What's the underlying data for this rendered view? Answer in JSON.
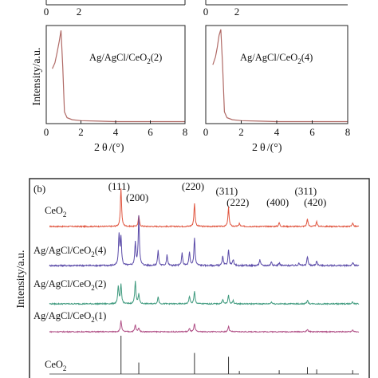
{
  "chart_data": [
    {
      "panel": "top-left-upper",
      "type": "line",
      "x_tick_labels": [
        "0",
        "2"
      ],
      "series": [
        {
          "x": [],
          "y": []
        }
      ]
    },
    {
      "panel": "top-right-upper",
      "type": "line",
      "x_tick_labels": [
        "0",
        "2"
      ],
      "series": [
        {
          "x": [],
          "y": []
        }
      ]
    },
    {
      "panel": "top-left",
      "type": "line",
      "label_text": "Ag/AgCl/CeO",
      "label_sub": "2",
      "label_suffix": "(2)",
      "xlabel_text": "2",
      "xlabel_theta": "θ",
      "xlabel_unit": "/(°)",
      "ylabel": "Intensity/a.u.",
      "xlim": [
        0,
        8
      ],
      "ylim": [
        0,
        1
      ],
      "x_tick_labels": [
        "0",
        "2",
        "4",
        "6",
        "8"
      ],
      "series": [
        {
          "color": "#b06a66",
          "x": [
            0.35,
            0.5,
            0.62,
            0.75,
            0.85,
            0.95,
            1.05,
            1.2,
            1.5,
            2,
            3,
            4,
            5,
            6,
            7,
            8
          ],
          "y": [
            0.56,
            0.62,
            0.72,
            0.84,
            0.95,
            0.58,
            0.12,
            0.06,
            0.04,
            0.03,
            0.025,
            0.02,
            0.02,
            0.02,
            0.02,
            0.02
          ]
        }
      ]
    },
    {
      "panel": "top-right",
      "type": "line",
      "label_text": "Ag/AgCl/CeO",
      "label_sub": "2",
      "label_suffix": "(4)",
      "xlabel_text": "2",
      "xlabel_theta": "θ",
      "xlabel_unit": "/(°)",
      "xlim": [
        0,
        8
      ],
      "ylim": [
        0,
        1
      ],
      "x_tick_labels": [
        "0",
        "2",
        "4",
        "6",
        "8"
      ],
      "series": [
        {
          "color": "#b06a66",
          "x": [
            0.4,
            0.55,
            0.65,
            0.75,
            0.85,
            0.95,
            1.05,
            1.2,
            1.5,
            2,
            3,
            4,
            5,
            6,
            7,
            8
          ],
          "y": [
            0.6,
            0.68,
            0.78,
            0.9,
            0.96,
            0.6,
            0.12,
            0.06,
            0.04,
            0.03,
            0.025,
            0.02,
            0.02,
            0.02,
            0.02,
            0.02
          ]
        }
      ]
    },
    {
      "panel": "b",
      "type": "line",
      "panel_letter": "(b)",
      "ylabel": "Intensity/a.u.",
      "xlim": [
        10,
        90
      ],
      "hkl_labels": [
        {
          "text": "(111)",
          "x": 28.5
        },
        {
          "text": "(200)",
          "x": 33.1
        },
        {
          "text": "(220)",
          "x": 47.5
        },
        {
          "text": "(311)",
          "x": 56.3
        },
        {
          "text": "(222)",
          "x": 59.1
        },
        {
          "text": "(400)",
          "x": 69.4
        },
        {
          "text": "(311)",
          "x": 76.7
        },
        {
          "text": "(420)",
          "x": 79.1
        }
      ],
      "series": [
        {
          "label_text": "CeO",
          "label_sub": "2",
          "label_suffix": "",
          "color": "#e0553f",
          "peaks": [
            [
              28.5,
              1.0
            ],
            [
              33.1,
              0.28
            ],
            [
              47.5,
              0.6
            ],
            [
              56.3,
              0.5
            ],
            [
              59.1,
              0.08
            ],
            [
              69.4,
              0.1
            ],
            [
              76.7,
              0.2
            ],
            [
              79.1,
              0.12
            ],
            [
              88.4,
              0.1
            ]
          ]
        },
        {
          "label_text": "Ag/AgCl/CeO",
          "label_sub": "2",
          "label_suffix": "(4)",
          "color": "#5a4aa8",
          "peaks": [
            [
              28.0,
              0.62
            ],
            [
              28.5,
              0.55
            ],
            [
              32.2,
              0.45
            ],
            [
              33.1,
              1.0
            ],
            [
              38.1,
              0.3
            ],
            [
              40.4,
              0.22
            ],
            [
              44.3,
              0.25
            ],
            [
              46.2,
              0.26
            ],
            [
              47.5,
              0.55
            ],
            [
              54.8,
              0.18
            ],
            [
              56.3,
              0.32
            ],
            [
              57.5,
              0.12
            ],
            [
              64.4,
              0.12
            ],
            [
              67.4,
              0.08
            ],
            [
              69.4,
              0.06
            ],
            [
              74.5,
              0.06
            ],
            [
              76.7,
              0.18
            ],
            [
              79.1,
              0.1
            ],
            [
              88.4,
              0.06
            ]
          ]
        },
        {
          "label_text": "Ag/AgCl/CeO",
          "label_sub": "2",
          "label_suffix": "(2)",
          "color": "#3f9a7e",
          "peaks": [
            [
              27.8,
              0.45
            ],
            [
              28.5,
              0.5
            ],
            [
              32.2,
              0.6
            ],
            [
              33.1,
              0.25
            ],
            [
              38.1,
              0.18
            ],
            [
              46.2,
              0.2
            ],
            [
              47.5,
              0.32
            ],
            [
              54.8,
              0.12
            ],
            [
              56.3,
              0.22
            ],
            [
              57.5,
              0.08
            ],
            [
              67.4,
              0.05
            ],
            [
              76.7,
              0.1
            ],
            [
              88.4,
              0.05
            ]
          ]
        },
        {
          "label_text": "Ag/AgCl/CeO",
          "label_sub": "2",
          "label_suffix": "(1)",
          "color": "#b04f86",
          "peaks": [
            [
              28.5,
              0.35
            ],
            [
              32.2,
              0.22
            ],
            [
              33.1,
              0.12
            ],
            [
              46.2,
              0.1
            ],
            [
              47.5,
              0.25
            ],
            [
              56.3,
              0.18
            ],
            [
              76.7,
              0.08
            ],
            [
              88.4,
              0.05
            ]
          ]
        },
        {
          "label_text": "CeO",
          "label_sub": "2",
          "label_suffix": "",
          "style": "reference-sticks",
          "color": "#333333",
          "peaks": [
            [
              28.5,
              1.0
            ],
            [
              33.1,
              0.3
            ],
            [
              47.5,
              0.55
            ],
            [
              56.3,
              0.45
            ],
            [
              59.1,
              0.08
            ],
            [
              69.4,
              0.1
            ],
            [
              76.7,
              0.18
            ],
            [
              79.1,
              0.12
            ],
            [
              88.4,
              0.1
            ]
          ]
        }
      ]
    }
  ]
}
